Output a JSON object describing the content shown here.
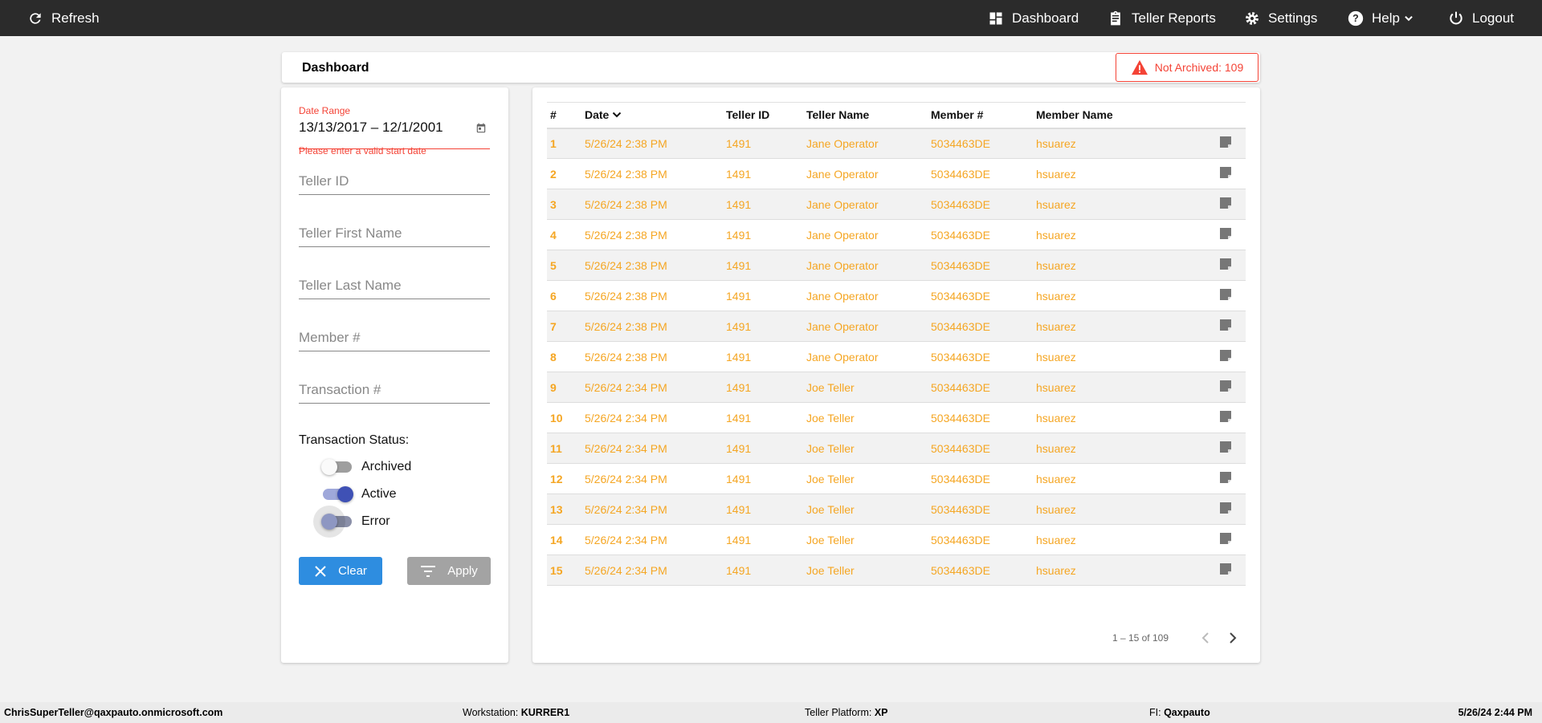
{
  "topbar": {
    "refresh": "Refresh",
    "dashboard": "Dashboard",
    "teller_reports": "Teller Reports",
    "settings": "Settings",
    "help": "Help",
    "logout": "Logout"
  },
  "header": {
    "title": "Dashboard",
    "alert": "Not Archived: 109"
  },
  "filters": {
    "date_label": "Date Range",
    "date_value": "13/13/2017 – 12/1/2001",
    "date_error": "Please enter a valid start date",
    "teller_id": "Teller ID",
    "first_name": "Teller First Name",
    "last_name": "Teller Last Name",
    "member": "Member #",
    "transaction": "Transaction #",
    "status_label": "Transaction Status:",
    "toggles": [
      {
        "label": "Archived",
        "on": false
      },
      {
        "label": "Active",
        "on": true
      },
      {
        "label": "Error",
        "on": false
      }
    ],
    "clear": "Clear",
    "apply": "Apply"
  },
  "table": {
    "columns": [
      "#",
      "Date",
      "Teller ID",
      "Teller Name",
      "Member #",
      "Member Name"
    ],
    "rows": [
      [
        "1",
        "5/26/24 2:38 PM",
        "1491",
        "Jane Operator",
        "5034463DE",
        "hsuarez"
      ],
      [
        "2",
        "5/26/24 2:38 PM",
        "1491",
        "Jane Operator",
        "5034463DE",
        "hsuarez"
      ],
      [
        "3",
        "5/26/24 2:38 PM",
        "1491",
        "Jane Operator",
        "5034463DE",
        "hsuarez"
      ],
      [
        "4",
        "5/26/24 2:38 PM",
        "1491",
        "Jane Operator",
        "5034463DE",
        "hsuarez"
      ],
      [
        "5",
        "5/26/24 2:38 PM",
        "1491",
        "Jane Operator",
        "5034463DE",
        "hsuarez"
      ],
      [
        "6",
        "5/26/24 2:38 PM",
        "1491",
        "Jane Operator",
        "5034463DE",
        "hsuarez"
      ],
      [
        "7",
        "5/26/24 2:38 PM",
        "1491",
        "Jane Operator",
        "5034463DE",
        "hsuarez"
      ],
      [
        "8",
        "5/26/24 2:38 PM",
        "1491",
        "Jane Operator",
        "5034463DE",
        "hsuarez"
      ],
      [
        "9",
        "5/26/24 2:34 PM",
        "1491",
        "Joe Teller",
        "5034463DE",
        "hsuarez"
      ],
      [
        "10",
        "5/26/24 2:34 PM",
        "1491",
        "Joe Teller",
        "5034463DE",
        "hsuarez"
      ],
      [
        "11",
        "5/26/24 2:34 PM",
        "1491",
        "Joe Teller",
        "5034463DE",
        "hsuarez"
      ],
      [
        "12",
        "5/26/24 2:34 PM",
        "1491",
        "Joe Teller",
        "5034463DE",
        "hsuarez"
      ],
      [
        "13",
        "5/26/24 2:34 PM",
        "1491",
        "Joe Teller",
        "5034463DE",
        "hsuarez"
      ],
      [
        "14",
        "5/26/24 2:34 PM",
        "1491",
        "Joe Teller",
        "5034463DE",
        "hsuarez"
      ],
      [
        "15",
        "5/26/24 2:34 PM",
        "1491",
        "Joe Teller",
        "5034463DE",
        "hsuarez"
      ]
    ],
    "range": "1 – 15 of 109"
  },
  "footer": {
    "user": "ChrisSuperTeller@qaxpauto.onmicrosoft.com",
    "workstation_label": "Workstation:",
    "workstation": "KURRER1",
    "platform_label": "Teller Platform:",
    "platform": "XP",
    "fi_label": "FI:",
    "fi": "Qaxpauto",
    "datetime": "5/26/24 2:44 PM"
  },
  "colors": {
    "accent": "#f5a623",
    "error": "#f44336",
    "toggle_on": "#3f51b5",
    "clear_button": "#2e8de0"
  }
}
